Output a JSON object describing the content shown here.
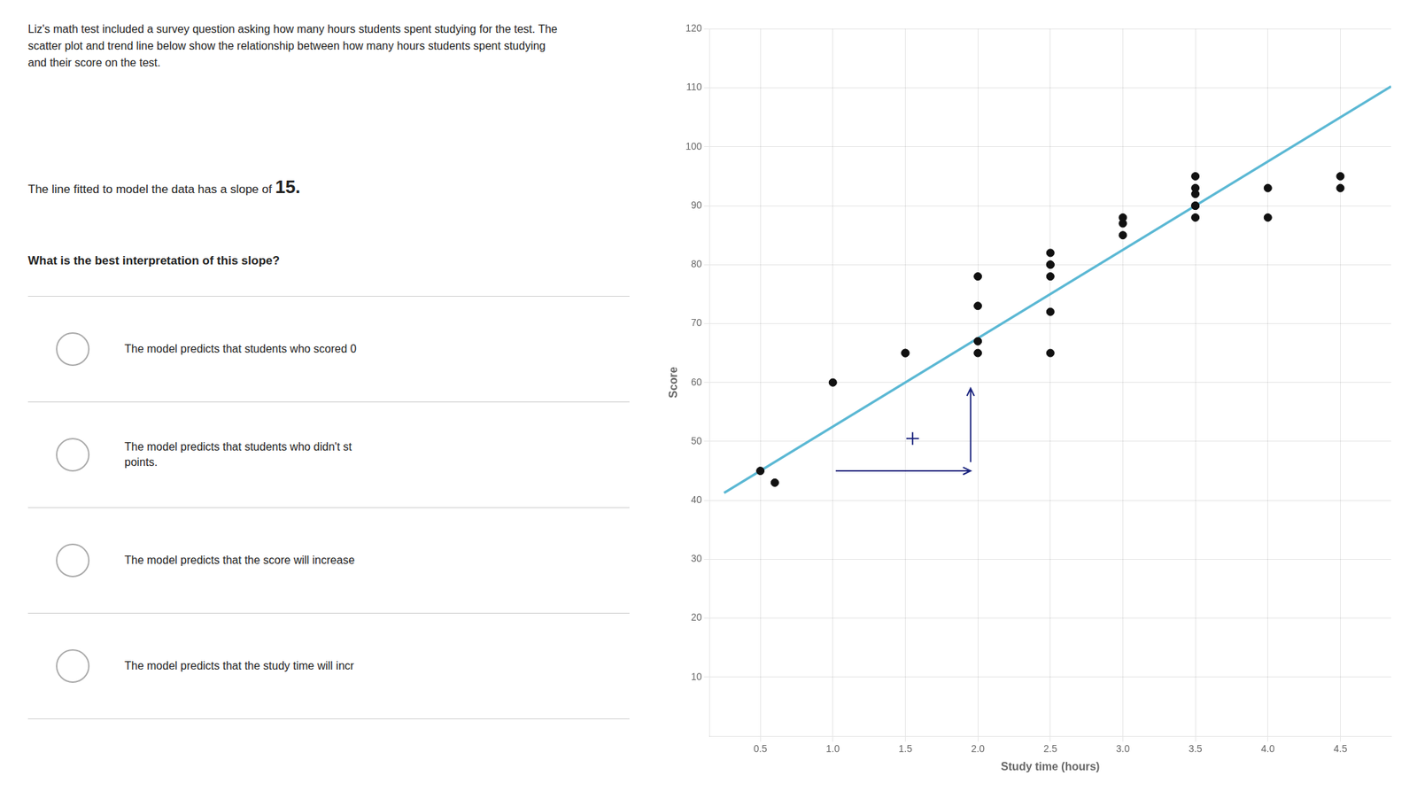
{
  "chart_data": {
    "type": "scatter",
    "title": "Liz's math test included a survey question asking how many hours students spent studying for the test. The\nscatter plot and trend line below show the relationship between how many hours students spent studying\nand their score on the test.",
    "annotations": [
      "The line fitted to model the data has a slope of ",
      "15.",
      "What is the best interpretation of this slope?",
      "The model predicts that students who scored 0",
      "The model predicts that students who didn't st\npoints.",
      "The model predicts that the score will increase",
      "The model predicts that the study time will incr"
    ],
    "xlabel": "Study time (hours)",
    "ylabel": "Score",
    "xlim": [
      0.15,
      4.85
    ],
    "ylim": [
      0,
      120
    ],
    "xticks": [
      0.5,
      {
        "value": 1,
        "label": "1.0"
      },
      1.5,
      {
        "value": 2,
        "label": "2.0"
      },
      2.5,
      {
        "value": 3,
        "label": "3.0"
      },
      3.5,
      {
        "value": 4,
        "label": "4.0"
      },
      4.5
    ],
    "yticks": [
      10,
      20,
      30,
      40,
      50,
      60,
      70,
      80,
      90,
      100,
      110,
      120
    ],
    "grid": true,
    "series": [
      {
        "type": "scatter",
        "marker": "circle",
        "color": "#111111",
        "x": [
          0.5,
          0.6,
          1.0,
          1.5,
          1.5,
          2.0,
          2.0,
          2.0,
          2.0,
          2.5,
          2.5,
          2.5,
          2.5,
          2.5,
          2.5,
          3.0,
          3.0,
          3.0,
          3.5,
          3.5,
          3.5,
          3.5,
          3.5,
          3.5,
          4.0,
          4.0,
          4.5,
          4.5
        ],
        "values": [
          45,
          43,
          60,
          65,
          65,
          65,
          67,
          73,
          78,
          65,
          72,
          80,
          80,
          82,
          78,
          85,
          87,
          88,
          88,
          90,
          90,
          92,
          93,
          95,
          88,
          93,
          93,
          95
        ]
      },
      {
        "type": "line",
        "color": "#5bb8d4",
        "x": [
          0.25,
          4.85
        ],
        "values": [
          41.25,
          110.25
        ]
      },
      {
        "type": "arrow",
        "color": "#1a237e",
        "x": [
          1.02,
          1.95
        ],
        "values": [
          45,
          45
        ]
      },
      {
        "type": "arrow",
        "color": "#1a237e",
        "x": [
          1.95,
          1.95
        ],
        "values": [
          46.5,
          59
        ]
      },
      {
        "type": "scatter",
        "marker": "cross",
        "color": "#1a237e",
        "x": [
          1.55
        ],
        "values": [
          50.5
        ]
      }
    ]
  }
}
